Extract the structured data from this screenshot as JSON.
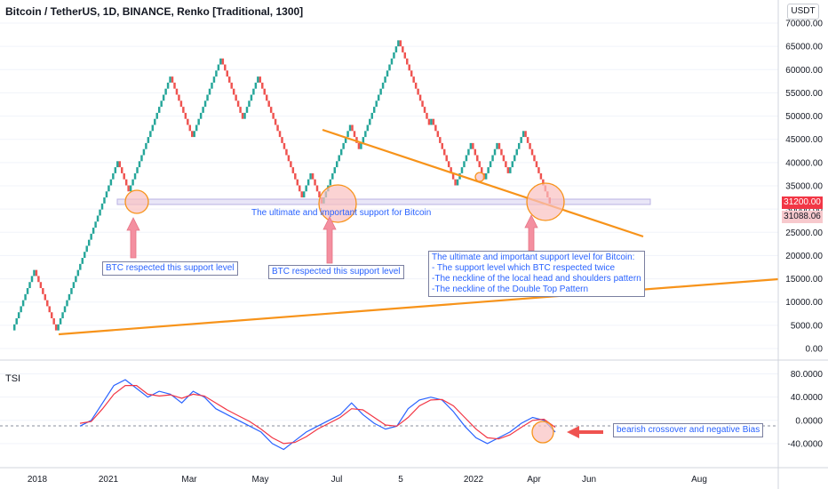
{
  "header": {
    "title": "Bitcoin / TetherUS, 1D, BINANCE, Renko [Traditional, 1300]",
    "currency": "USDT"
  },
  "price_axis": {
    "ticks": [
      "70000.00",
      "65000.00",
      "60000.00",
      "55000.00",
      "50000.00",
      "45000.00",
      "40000.00",
      "35000.00",
      "30000.00",
      "25000.00",
      "20000.00",
      "15000.00",
      "10000.00",
      "5000.00",
      "0.00"
    ],
    "current_price": "31200.00",
    "support_price": "31088.06",
    "current_color": "#f23645",
    "support_color": "#f7525f"
  },
  "tsi_panel": {
    "label": "TSI",
    "ticks": [
      "80.0000",
      "40.0000",
      "0.0000",
      "-40.0000"
    ],
    "blue_color": "#2962ff",
    "red_color": "#f23645"
  },
  "time_axis": {
    "labels": [
      "2018",
      "2021",
      "Mar",
      "May",
      "Jul",
      "5",
      "2022",
      "Apr",
      "Jun",
      "Aug"
    ]
  },
  "annotations": {
    "support_band_label": "The ultimate and important support for Bitcoin",
    "note_left": "BTC respected this support level",
    "note_mid": "BTC respected this support level",
    "note_right": "The ultimate and important support level for Bitcoin:\n- The support level which BTC respected twice\n-The neckline of the local head and shoulders pattern\n-The neckline of the Double Top Pattern",
    "note_tsi": "bearish crossover and negative Bias"
  },
  "colors": {
    "up": "#26a69a",
    "down": "#ef5350",
    "trendline": "#f7931a",
    "band_fill": "#e9e6f7",
    "circle_fill": "#f9c0c0",
    "arrow": "#f48fa0"
  },
  "chart_data": [
    {
      "type": "line",
      "subtype": "renko",
      "box_size": 1300,
      "ylim": [
        0,
        70000
      ],
      "x_labels": [
        "2018",
        "2021",
        "Mar",
        "May",
        "Jul",
        "5",
        "2022",
        "Apr",
        "Jun",
        "Aug"
      ],
      "series": [
        {
          "values": [
            3900,
            16900,
            7800,
            3500,
            10400,
            13000,
            30000,
            40000,
            33500,
            41000,
            48800,
            57900,
            46000,
            58500,
            62000,
            49000,
            58000,
            55000,
            38000,
            34000,
            32000,
            38000,
            31200,
            35000,
            40000,
            48000,
            43000,
            52000,
            56000,
            62000,
            66000,
            60000,
            56000,
            48000,
            49000,
            42000,
            35000,
            44000,
            37000,
            44000,
            38000,
            47000,
            40000,
            31200
          ]
        }
      ],
      "support_level": 31088.06,
      "current_price": 31200,
      "annotations": [
        "The ultimate and important support for Bitcoin",
        "BTC respected this support level",
        "BTC respected this support level",
        "The ultimate and important support level for Bitcoin:",
        "- The support level which BTC respected twice",
        "-The neckline of the local head and shoulders pattern",
        "-The neckline of the Double Top Pattern"
      ]
    },
    {
      "type": "line",
      "title": "TSI",
      "ylim": [
        -60,
        90
      ],
      "series": [
        {
          "values": [
            -10,
            0,
            30,
            60,
            70,
            55,
            40,
            50,
            45,
            30,
            50,
            40,
            20,
            10,
            0,
            -10,
            -20,
            -40,
            -50,
            -35,
            -20,
            -10,
            0,
            10,
            30,
            10,
            -5,
            -15,
            -10,
            20,
            35,
            40,
            35,
            15,
            -10,
            -30,
            -40,
            -30,
            -20,
            -5,
            5,
            0,
            -20
          ]
        },
        {
          "values": [
            -5,
            -2,
            20,
            45,
            60,
            60,
            45,
            42,
            44,
            38,
            45,
            42,
            30,
            18,
            8,
            -2,
            -15,
            -30,
            -40,
            -38,
            -28,
            -15,
            -5,
            5,
            20,
            18,
            5,
            -8,
            -10,
            5,
            25,
            35,
            36,
            25,
            5,
            -15,
            -30,
            -32,
            -25,
            -12,
            0,
            2,
            -12
          ]
        }
      ],
      "zero_line": 0,
      "annotations": [
        "bearish crossover and negative Bias"
      ]
    }
  ]
}
